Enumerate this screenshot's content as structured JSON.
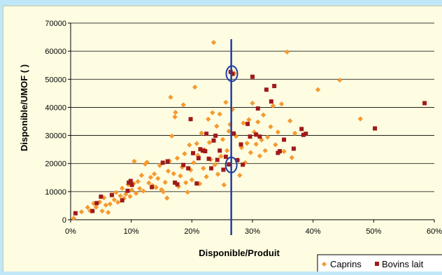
{
  "chart_data": {
    "type": "scatter",
    "title": "",
    "xlabel": "Disponible/Produit",
    "ylabel": "Disponible/UMOF ( )",
    "xlim": [
      0,
      0.6
    ],
    "ylim": [
      0,
      70000
    ],
    "x_ticks": [
      "0%",
      "10%",
      "20%",
      "30%",
      "40%",
      "50%",
      "60%"
    ],
    "y_ticks": [
      "0",
      "10000",
      "20000",
      "30000",
      "40000",
      "50000",
      "60000",
      "70000"
    ],
    "grid": "horizontal",
    "legend_position": "bottom-right",
    "reference_line": {
      "x": 0.265,
      "color": "#1f3fa0"
    },
    "highlight_circles": [
      {
        "x": 0.266,
        "y": 52000
      },
      {
        "x": 0.265,
        "y": 19500
      }
    ],
    "series": [
      {
        "name": "Caprins",
        "marker": "diamond",
        "color": "#f59a30",
        "points": [
          [
            0.005,
            500
          ],
          [
            0.018,
            2800
          ],
          [
            0.028,
            4400
          ],
          [
            0.032,
            3200
          ],
          [
            0.038,
            5800
          ],
          [
            0.042,
            4500
          ],
          [
            0.048,
            6300
          ],
          [
            0.052,
            3100
          ],
          [
            0.055,
            7800
          ],
          [
            0.058,
            5200
          ],
          [
            0.062,
            2600
          ],
          [
            0.065,
            5600
          ],
          [
            0.068,
            8800
          ],
          [
            0.072,
            7100
          ],
          [
            0.075,
            9700
          ],
          [
            0.078,
            6200
          ],
          [
            0.082,
            8500
          ],
          [
            0.085,
            11200
          ],
          [
            0.088,
            7600
          ],
          [
            0.091,
            9100
          ],
          [
            0.095,
            12500
          ],
          [
            0.098,
            8300
          ],
          [
            0.101,
            10600
          ],
          [
            0.104,
            12900
          ],
          [
            0.105,
            20800
          ],
          [
            0.108,
            9400
          ],
          [
            0.111,
            13600
          ],
          [
            0.114,
            11100
          ],
          [
            0.117,
            15800
          ],
          [
            0.12,
            10200
          ],
          [
            0.123,
            19800
          ],
          [
            0.126,
            20500
          ],
          [
            0.129,
            13100
          ],
          [
            0.132,
            15100
          ],
          [
            0.135,
            12200
          ],
          [
            0.138,
            16300
          ],
          [
            0.141,
            11500
          ],
          [
            0.144,
            14700
          ],
          [
            0.147,
            19300
          ],
          [
            0.15,
            10700
          ],
          [
            0.153,
            9900
          ],
          [
            0.156,
            13300
          ],
          [
            0.159,
            7700
          ],
          [
            0.161,
            17300
          ],
          [
            0.163,
            20900
          ],
          [
            0.165,
            43600
          ],
          [
            0.167,
            29800
          ],
          [
            0.17,
            16400
          ],
          [
            0.172,
            36600
          ],
          [
            0.173,
            38200
          ],
          [
            0.176,
            21900
          ],
          [
            0.178,
            11800
          ],
          [
            0.181,
            15600
          ],
          [
            0.184,
            18700
          ],
          [
            0.186,
            40900
          ],
          [
            0.188,
            23500
          ],
          [
            0.19,
            13200
          ],
          [
            0.193,
            9800
          ],
          [
            0.196,
            26600
          ],
          [
            0.198,
            17700
          ],
          [
            0.2,
            14200
          ],
          [
            0.203,
            20300
          ],
          [
            0.205,
            47200
          ],
          [
            0.208,
            27100
          ],
          [
            0.21,
            22900
          ],
          [
            0.213,
            12800
          ],
          [
            0.216,
            30800
          ],
          [
            0.219,
            18300
          ],
          [
            0.221,
            24900
          ],
          [
            0.224,
            15300
          ],
          [
            0.227,
            35800
          ],
          [
            0.229,
            27500
          ],
          [
            0.231,
            21400
          ],
          [
            0.234,
            38100
          ],
          [
            0.236,
            63100
          ],
          [
            0.238,
            19600
          ],
          [
            0.241,
            33300
          ],
          [
            0.243,
            16200
          ],
          [
            0.246,
            37600
          ],
          [
            0.248,
            22600
          ],
          [
            0.251,
            28600
          ],
          [
            0.253,
            12400
          ],
          [
            0.256,
            41800
          ],
          [
            0.258,
            24600
          ],
          [
            0.261,
            31500
          ],
          [
            0.263,
            33900
          ],
          [
            0.267,
            39300
          ],
          [
            0.27,
            52100
          ],
          [
            0.273,
            29700
          ],
          [
            0.276,
            21300
          ],
          [
            0.279,
            15800
          ],
          [
            0.282,
            25700
          ],
          [
            0.285,
            34400
          ],
          [
            0.288,
            20300
          ],
          [
            0.291,
            27200
          ],
          [
            0.294,
            35600
          ],
          [
            0.297,
            23900
          ],
          [
            0.3,
            41500
          ],
          [
            0.303,
            31200
          ],
          [
            0.306,
            26900
          ],
          [
            0.309,
            34800
          ],
          [
            0.312,
            22700
          ],
          [
            0.315,
            28400
          ],
          [
            0.318,
            37300
          ],
          [
            0.321,
            24600
          ],
          [
            0.325,
            29400
          ],
          [
            0.33,
            33100
          ],
          [
            0.334,
            40600
          ],
          [
            0.338,
            26700
          ],
          [
            0.342,
            31200
          ],
          [
            0.348,
            41200
          ],
          [
            0.352,
            24300
          ],
          [
            0.357,
            59700
          ],
          [
            0.362,
            35200
          ],
          [
            0.365,
            22100
          ],
          [
            0.37,
            30800
          ],
          [
            0.408,
            46300
          ],
          [
            0.444,
            49700
          ],
          [
            0.478,
            35900
          ]
        ]
      },
      {
        "name": "Bovins lait",
        "marker": "square",
        "color": "#a01a1a",
        "points": [
          [
            0.008,
            2300
          ],
          [
            0.036,
            3100
          ],
          [
            0.043,
            5900
          ],
          [
            0.05,
            8200
          ],
          [
            0.068,
            8800
          ],
          [
            0.085,
            6900
          ],
          [
            0.094,
            10300
          ],
          [
            0.096,
            13200
          ],
          [
            0.099,
            13800
          ],
          [
            0.101,
            12400
          ],
          [
            0.134,
            11600
          ],
          [
            0.152,
            20300
          ],
          [
            0.16,
            20800
          ],
          [
            0.172,
            13200
          ],
          [
            0.176,
            12600
          ],
          [
            0.186,
            19500
          ],
          [
            0.194,
            18300
          ],
          [
            0.198,
            35800
          ],
          [
            0.202,
            23700
          ],
          [
            0.208,
            12900
          ],
          [
            0.211,
            21900
          ],
          [
            0.214,
            25100
          ],
          [
            0.218,
            24600
          ],
          [
            0.222,
            24400
          ],
          [
            0.224,
            30600
          ],
          [
            0.228,
            21700
          ],
          [
            0.232,
            18300
          ],
          [
            0.236,
            28200
          ],
          [
            0.239,
            29900
          ],
          [
            0.242,
            21300
          ],
          [
            0.246,
            24600
          ],
          [
            0.252,
            17800
          ],
          [
            0.256,
            22400
          ],
          [
            0.261,
            19700
          ],
          [
            0.264,
            52600
          ],
          [
            0.267,
            51900
          ],
          [
            0.269,
            30700
          ],
          [
            0.275,
            21200
          ],
          [
            0.281,
            26800
          ],
          [
            0.284,
            19600
          ],
          [
            0.292,
            34100
          ],
          [
            0.296,
            29600
          ],
          [
            0.3,
            50900
          ],
          [
            0.306,
            30300
          ],
          [
            0.309,
            39600
          ],
          [
            0.312,
            29600
          ],
          [
            0.323,
            46300
          ],
          [
            0.331,
            42100
          ],
          [
            0.336,
            47600
          ],
          [
            0.342,
            23800
          ],
          [
            0.345,
            24400
          ],
          [
            0.352,
            28500
          ],
          [
            0.368,
            25300
          ],
          [
            0.381,
            32300
          ],
          [
            0.384,
            30200
          ],
          [
            0.388,
            30600
          ],
          [
            0.502,
            32500
          ],
          [
            0.584,
            41500
          ]
        ]
      }
    ]
  }
}
